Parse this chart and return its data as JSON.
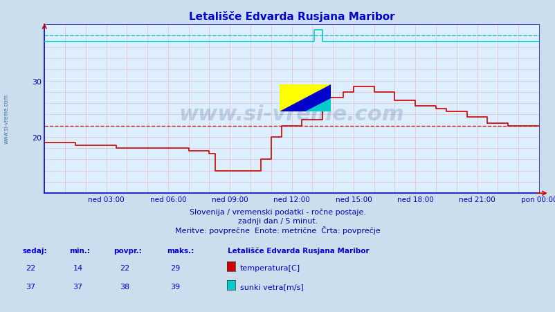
{
  "title": "Letališče Edvarda Rusjana Maribor",
  "bg_color": "#ccdded",
  "plot_bg_color": "#ddeeff",
  "subtitle1": "Slovenija / vremenski podatki - ročne postaje.",
  "subtitle2": "zadnji dan / 5 minut.",
  "subtitle3": "Meritve: povprečne  Enote: metrične  Črta: povprečje",
  "xlabel_ticks": [
    "ned 03:00",
    "ned 06:00",
    "ned 09:00",
    "ned 12:00",
    "ned 15:00",
    "ned 18:00",
    "ned 21:00",
    "pon 00:00"
  ],
  "xtick_positions": [
    3,
    6,
    9,
    12,
    15,
    18,
    21,
    24
  ],
  "ylim": [
    10,
    40
  ],
  "yticks": [
    20,
    30
  ],
  "temp_color": "#cc0000",
  "wind_color": "#00cccc",
  "avg_temp_line": 22,
  "avg_wind_line": 38,
  "temp_x": [
    0,
    0.5,
    1.0,
    1.5,
    2.0,
    2.5,
    3.0,
    3.5,
    4.0,
    4.5,
    5.0,
    5.5,
    6.0,
    6.5,
    7.0,
    7.5,
    8.0,
    8.3,
    8.6,
    9.0,
    9.5,
    10.0,
    10.5,
    11.0,
    11.5,
    12.0,
    12.5,
    13.0,
    13.5,
    14.0,
    14.5,
    15.0,
    15.5,
    16.0,
    16.5,
    17.0,
    17.5,
    18.0,
    18.5,
    19.0,
    19.5,
    20.0,
    20.5,
    21.0,
    21.5,
    22.0,
    22.5,
    23.0,
    23.5,
    24.0
  ],
  "temp_y": [
    19,
    19,
    19,
    18.5,
    18.5,
    18.5,
    18.5,
    18.0,
    18.0,
    18.0,
    18.0,
    18.0,
    18.0,
    18.0,
    17.5,
    17.5,
    17.0,
    14.0,
    14.0,
    14.0,
    14.0,
    14.0,
    16.0,
    20.0,
    22.0,
    22.0,
    23.0,
    23.0,
    27.0,
    27.0,
    28.0,
    29.0,
    29.0,
    28.0,
    28.0,
    26.5,
    26.5,
    25.5,
    25.5,
    25.0,
    24.5,
    24.5,
    23.5,
    23.5,
    22.5,
    22.5,
    22.0,
    22.0,
    22.0,
    22.0
  ],
  "wind_x": [
    0,
    13.1,
    13.1,
    13.5,
    13.5,
    24.0
  ],
  "wind_y": [
    37,
    37,
    39,
    39,
    37,
    37
  ],
  "watermark": "www.si-vreme.com",
  "watermark_color": "#1a3a6a",
  "sidebar_text": "www.si-vreme.com",
  "sidebar_color": "#336699",
  "legend_title": "Letališče Edvarda Rusjana Maribor",
  "legend_items": [
    {
      "label": "temperatura[C]",
      "color": "#cc0000",
      "sedaj": 22,
      "min": 14,
      "povpr": 22,
      "maks": 29
    },
    {
      "label": "sunki vetra[m/s]",
      "color": "#00cccc",
      "sedaj": 37,
      "min": 37,
      "povpr": 38,
      "maks": 39
    }
  ]
}
